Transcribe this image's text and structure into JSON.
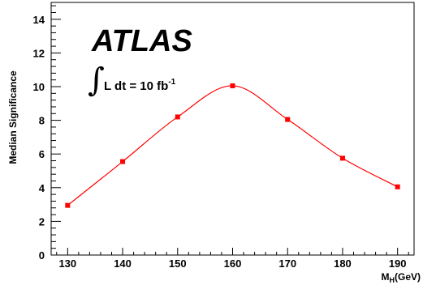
{
  "chart_data": {
    "type": "line",
    "title": "",
    "experiment_label": "ATLAS",
    "luminosity": {
      "integral_text": "L dt = 10 fb",
      "superscript": "-1"
    },
    "xlabel": {
      "main": "M",
      "subscript": "H",
      "unit": "(GeV)"
    },
    "ylabel": "Median Significance",
    "xlim": [
      127,
      193
    ],
    "ylim": [
      0,
      15
    ],
    "x_ticks": [
      "130",
      "140",
      "150",
      "160",
      "170",
      "180",
      "190"
    ],
    "y_ticks": [
      "0",
      "2",
      "4",
      "6",
      "8",
      "10",
      "12",
      "14"
    ],
    "grid": false,
    "series": [
      {
        "x": [
          130,
          140,
          150,
          160,
          170,
          180,
          190
        ],
        "values": [
          2.95,
          5.55,
          8.2,
          10.05,
          8.05,
          5.75,
          4.05
        ],
        "color": "#ff0000",
        "marker": "square"
      }
    ]
  }
}
